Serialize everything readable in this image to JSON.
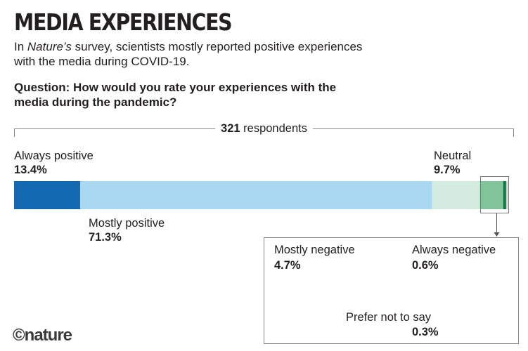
{
  "header": {
    "title": "MEDIA EXPERIENCES",
    "subtitle_pre": "In ",
    "subtitle_em": "Nature’s",
    "subtitle_post": " survey, scientists mostly reported positive experiences with the media during COVID-19.",
    "question": "Question: How would you rate your experiences with the media during the pandemic?"
  },
  "respondents": {
    "count": "321",
    "label": " respondents"
  },
  "footer": {
    "logo_text": "©nature"
  },
  "chart_data": {
    "type": "bar",
    "stacked": true,
    "total_respondents": 321,
    "segments": [
      {
        "name": "Always positive",
        "value": 13.4,
        "label": "13.4%",
        "color": "#1469b3"
      },
      {
        "name": "Mostly positive",
        "value": 71.3,
        "label": "71.3%",
        "color": "#a9d8f2"
      },
      {
        "name": "Neutral",
        "value": 9.7,
        "label": "9.7%",
        "color": "#d4ebe0"
      },
      {
        "name": "Mostly negative",
        "value": 4.7,
        "label": "4.7%",
        "color": "#82c49c"
      },
      {
        "name": "Always negative",
        "value": 0.6,
        "label": "0.6%",
        "color": "#0c7a3e"
      },
      {
        "name": "Prefer not to say",
        "value": 0.3,
        "label": "0.3%",
        "color": "#c4cbd1"
      }
    ],
    "inset_segments": [
      "Mostly negative",
      "Always negative",
      "Prefer not to say"
    ]
  }
}
